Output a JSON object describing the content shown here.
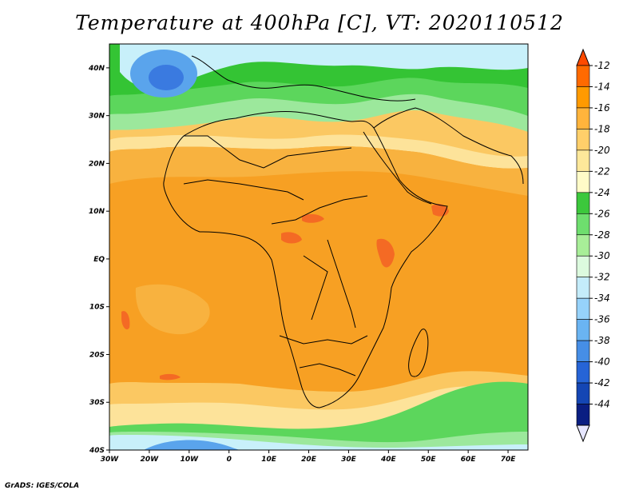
{
  "title": "Temperature at 400hPa [C], VT: 2020110512",
  "credit": "GrADS: IGES/COLA",
  "map": {
    "lon_range": [
      -30,
      75
    ],
    "lat_range": [
      -40,
      45
    ],
    "lat_ticks": [
      {
        "value": 40,
        "label": "40N"
      },
      {
        "value": 30,
        "label": "30N"
      },
      {
        "value": 20,
        "label": "20N"
      },
      {
        "value": 10,
        "label": "10N"
      },
      {
        "value": 0,
        "label": "EQ"
      },
      {
        "value": -10,
        "label": "10S"
      },
      {
        "value": -20,
        "label": "20S"
      },
      {
        "value": -30,
        "label": "30S"
      },
      {
        "value": -40,
        "label": "40S"
      }
    ],
    "lon_ticks": [
      {
        "value": -30,
        "label": "30W"
      },
      {
        "value": -20,
        "label": "20W"
      },
      {
        "value": -10,
        "label": "10W"
      },
      {
        "value": 0,
        "label": "0"
      },
      {
        "value": 10,
        "label": "10E"
      },
      {
        "value": 20,
        "label": "20E"
      },
      {
        "value": 30,
        "label": "30E"
      },
      {
        "value": 40,
        "label": "40E"
      },
      {
        "value": 50,
        "label": "50E"
      },
      {
        "value": 60,
        "label": "60E"
      },
      {
        "value": 70,
        "label": "70E"
      }
    ]
  },
  "colorbar": {
    "levels": [
      {
        "label": "-12",
        "color": "#ff6a00"
      },
      {
        "label": "-14",
        "color": "#ff9a00"
      },
      {
        "label": "-16",
        "color": "#ffb43c"
      },
      {
        "label": "-18",
        "color": "#ffcf6a"
      },
      {
        "label": "-20",
        "color": "#fde89a"
      },
      {
        "label": "-22",
        "color": "#fffbc8"
      },
      {
        "label": "-24",
        "color": "#3cc83c"
      },
      {
        "label": "-26",
        "color": "#6ede6e"
      },
      {
        "label": "-28",
        "color": "#a8ee98"
      },
      {
        "label": "-30",
        "color": "#dcfade"
      },
      {
        "label": "-32",
        "color": "#c4ecfa"
      },
      {
        "label": "-34",
        "color": "#96d2fa"
      },
      {
        "label": "-36",
        "color": "#6ab4f2"
      },
      {
        "label": "-38",
        "color": "#468ee6"
      },
      {
        "label": "-40",
        "color": "#2664d6"
      },
      {
        "label": "-42",
        "color": "#1446b4"
      },
      {
        "label": "-44",
        "color": "#0a1e82"
      }
    ],
    "top_color": "#ff4a00",
    "bottom_color": "#e6e6ff"
  },
  "field_colors": {
    "warmest": "#f46a24",
    "warm": "#f7a023",
    "mid": "#f8b23f",
    "light": "#fbc862",
    "pale": "#fde39a",
    "green_dark": "#34c434",
    "green": "#5cd65c",
    "green_light": "#9ce89c",
    "cyan": "#c8f0fa",
    "blue": "#5aa4ec",
    "blue_dark": "#3a7ae0"
  }
}
